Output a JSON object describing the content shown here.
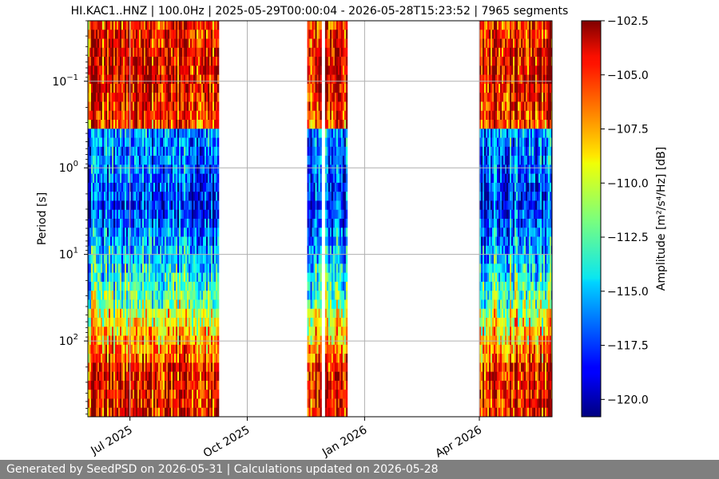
{
  "chart_data": {
    "type": "heatmap",
    "title": "HI.KAC1..HNZ | 100.0Hz | 2025-05-29T00:00:04 - 2026-05-28T15:23:52 | 7965 segments",
    "ylabel": "Period [s]",
    "y_scale": "log",
    "y_ticks": [
      {
        "value": 0.1,
        "base": "10",
        "exp": "−1"
      },
      {
        "value": 1,
        "base": "10",
        "exp": "0"
      },
      {
        "value": 10,
        "base": "10",
        "exp": "1"
      },
      {
        "value": 100,
        "base": "10",
        "exp": "2"
      }
    ],
    "ylim": [
      0.02,
      750
    ],
    "xlim": [
      "2025-05-29",
      "2026-05-28"
    ],
    "x_ticks": [
      {
        "date": "2025-07-01",
        "label": "Jul 2025"
      },
      {
        "date": "2025-10-01",
        "label": "Oct 2025"
      },
      {
        "date": "2026-01-01",
        "label": "Jan 2026"
      },
      {
        "date": "2026-04-01",
        "label": "Apr 2026"
      }
    ],
    "data_ranges": [
      [
        "2025-05-29",
        "2025-09-08"
      ],
      [
        "2025-11-17",
        "2025-11-28"
      ],
      [
        "2025-12-01",
        "2025-12-18"
      ],
      [
        "2026-04-01",
        "2026-05-28"
      ]
    ],
    "grid": true,
    "colorbar": {
      "label": "Amplitude [m²/s⁴/Hz] [dB]",
      "min": -120.8,
      "max": -102.5,
      "colormap": "jet",
      "ticks": [
        "−102.5",
        "−105.0",
        "−107.5",
        "−110.0",
        "−112.5",
        "−115.0",
        "−117.5",
        "−120.0"
      ],
      "tick_values": [
        -102.5,
        -105.0,
        -107.5,
        -110.0,
        -112.5,
        -115.0,
        -117.5,
        -120.0
      ]
    }
  },
  "footer": {
    "text": "Generated by SeedPSD on 2026-05-31 | Calculations updated on 2026-05-28"
  }
}
